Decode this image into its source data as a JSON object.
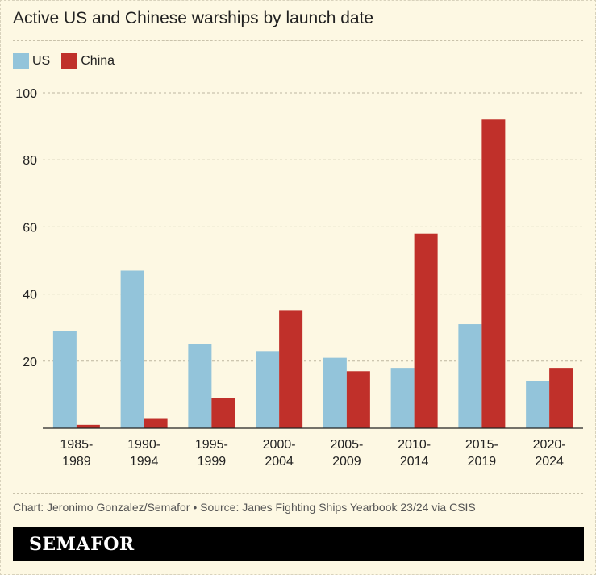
{
  "title": "Active US and Chinese warships by launch date",
  "legend": [
    {
      "name": "US",
      "color": "#93c4da"
    },
    {
      "name": "China",
      "color": "#c0302a"
    }
  ],
  "chart_data": {
    "type": "bar",
    "categories": [
      [
        "1985-",
        "1989"
      ],
      [
        "1990-",
        "1994"
      ],
      [
        "1995-",
        "1999"
      ],
      [
        "2000-",
        "2004"
      ],
      [
        "2005-",
        "2009"
      ],
      [
        "2010-",
        "2014"
      ],
      [
        "2015-",
        "2019"
      ],
      [
        "2020-",
        "2024"
      ]
    ],
    "series": [
      {
        "name": "US",
        "color": "#93c4da",
        "values": [
          29,
          47,
          25,
          23,
          21,
          18,
          31,
          14
        ]
      },
      {
        "name": "China",
        "color": "#c0302a",
        "values": [
          1,
          3,
          9,
          35,
          17,
          58,
          92,
          18
        ]
      }
    ],
    "ylim": [
      0,
      100
    ],
    "yticks": [
      20,
      40,
      60,
      80,
      100
    ],
    "grid": true,
    "legend_position": "top-left"
  },
  "source": "Chart: Jeronimo Gonzalez/Semafor • Source: Janes Fighting Ships Yearbook 23/24 via CSIS",
  "brand": "SEMAFOR"
}
